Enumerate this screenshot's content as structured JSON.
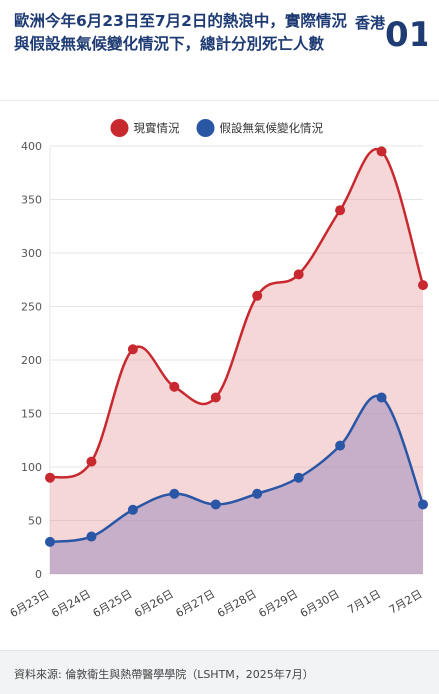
{
  "header": {
    "title": "歐洲今年6月23日至7月2日的熱浪中，實際情況與假設無氣候變化情況下，總計分別死亡人數",
    "logo_text": "香港",
    "logo_mark": "01"
  },
  "footer": {
    "source": "資料來源: 倫敦衛生與熱帶醫學學院（LSHTM，2025年7月）"
  },
  "colors": {
    "actual": "#c8292f",
    "actual_fill": "rgba(232,150,150,0.38)",
    "hypothetical": "#2a56a6",
    "hypothetical_fill": "rgba(160,140,190,0.55)",
    "title": "#1e3b73",
    "logo": "#1e3b73"
  },
  "chart_data": {
    "type": "area",
    "categories": [
      "6月23日",
      "6月24日",
      "6月25日",
      "6月26日",
      "6月27日",
      "6月28日",
      "6月29日",
      "6月30日",
      "7月1日",
      "7月2日"
    ],
    "series": [
      {
        "name": "現實情況",
        "values": [
          90,
          105,
          210,
          175,
          165,
          260,
          280,
          340,
          395,
          270
        ]
      },
      {
        "name": "假設無氣候變化情況",
        "values": [
          30,
          35,
          60,
          75,
          65,
          75,
          90,
          120,
          165,
          65
        ]
      }
    ],
    "ylim": [
      0,
      400
    ],
    "yticks": [
      0,
      50,
      100,
      150,
      200,
      250,
      300,
      350,
      400
    ],
    "grid": true,
    "legend": "top-center"
  }
}
